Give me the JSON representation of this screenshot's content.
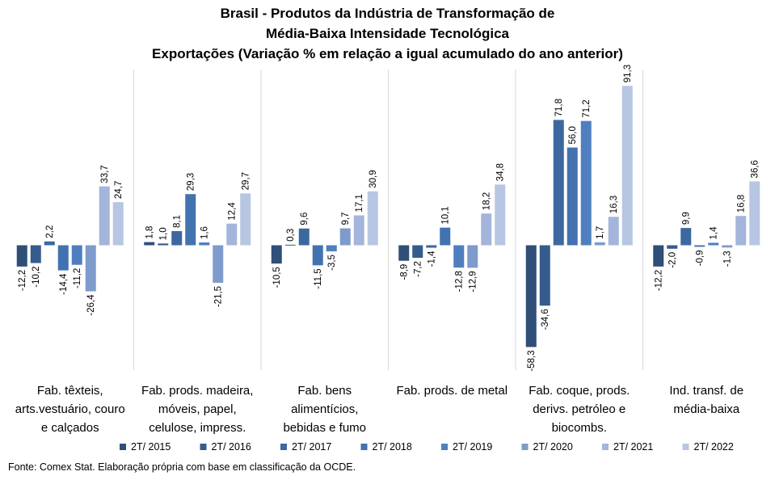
{
  "title_lines": [
    "Brasil - Produtos da Indústria de Transformação  de",
    "Média-Baixa  Intensidade Tecnológica",
    "Exportações (Variação % em relação a igual acumulado  do ano anterior)"
  ],
  "source": "Fonte: Comex Stat. Elaboração própria com base em classificação da OCDE.",
  "chart_data": {
    "type": "bar",
    "categories": [
      [
        "Fab. têxteis,",
        "arts.vestuário, couro",
        "e calçados"
      ],
      [
        "Fab. prods. madeira,",
        "móveis, papel,",
        "celulose, impress."
      ],
      [
        "Fab. bens",
        "alimentícios,",
        "bebidas e fumo"
      ],
      [
        "Fab. prods. de metal"
      ],
      [
        "Fab. coque, prods.",
        "derivs. petróleo e",
        "biocombs."
      ],
      [
        "Ind. transf. de",
        "média-baixa"
      ]
    ],
    "series": [
      {
        "name": "2T/ 2015",
        "color": "#2f4f78",
        "values": [
          -12.2,
          1.8,
          -10.5,
          -8.9,
          -58.3,
          -12.2
        ],
        "labels": [
          "-12,2",
          "1,8",
          "-10,5",
          "-8,9",
          "-58,3",
          "-12,2"
        ]
      },
      {
        "name": "2T/ 2016",
        "color": "#355c8c",
        "values": [
          -10.2,
          1.0,
          0.3,
          -7.2,
          -34.6,
          -2.0
        ],
        "labels": [
          "-10,2",
          "1,0",
          "0,3",
          "-7,2",
          "-34,6",
          "-2,0"
        ]
      },
      {
        "name": "2T/ 2017",
        "color": "#3c68a0",
        "values": [
          2.2,
          8.1,
          9.6,
          -1.4,
          71.8,
          9.9
        ],
        "labels": [
          "2,2",
          "8,1",
          "9,6",
          "-1,4",
          "71,8",
          "9,9"
        ]
      },
      {
        "name": "2T/ 2018",
        "color": "#4272b0",
        "values": [
          -14.4,
          29.3,
          -11.5,
          10.1,
          56.0,
          -0.9
        ],
        "labels": [
          "-14,4",
          "29,3",
          "-11,5",
          "10,1",
          "56,0",
          "-0,9"
        ]
      },
      {
        "name": "2T/ 2019",
        "color": "#4f7fbf",
        "values": [
          -11.2,
          1.6,
          -3.5,
          -12.8,
          71.2,
          1.4
        ],
        "labels": [
          "-11,2",
          "1,6",
          "-3,5",
          "-12,8",
          "71,2",
          "1,4"
        ]
      },
      {
        "name": "2T/ 2020",
        "color": "#7e9bcb",
        "values": [
          -26.4,
          -21.5,
          9.7,
          -12.9,
          1.7,
          -1.3
        ],
        "labels": [
          "-26,4",
          "-21,5",
          "9,7",
          "-12,9",
          "1,7",
          "-1,3"
        ]
      },
      {
        "name": "2T/ 2021",
        "color": "#a3b5da",
        "values": [
          33.7,
          12.4,
          17.1,
          18.2,
          16.3,
          16.8
        ],
        "labels": [
          "33,7",
          "12,4",
          "17,1",
          "18,2",
          "16,3",
          "16,8"
        ]
      },
      {
        "name": "2T/ 2022",
        "color": "#b7c6e2",
        "values": [
          24.7,
          29.7,
          30.9,
          34.8,
          91.3,
          36.6
        ],
        "labels": [
          "24,7",
          "29,7",
          "30,9",
          "34,8",
          "91,3",
          "36,6"
        ]
      }
    ],
    "legend_position": "bottom",
    "grid": false
  }
}
